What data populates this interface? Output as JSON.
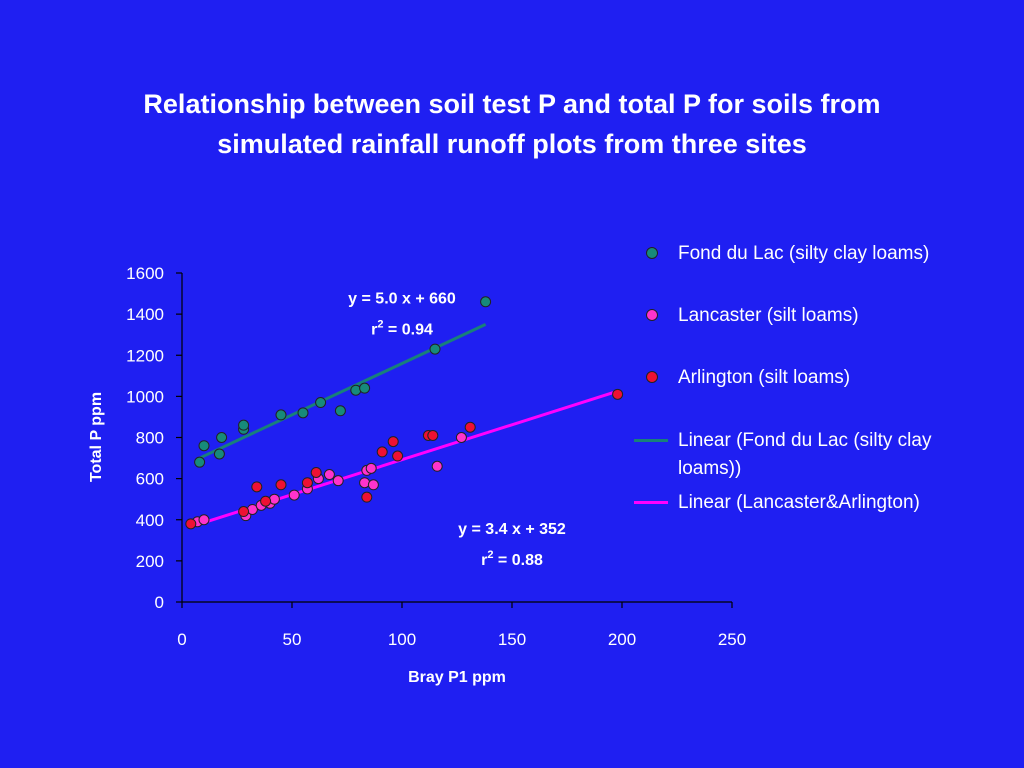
{
  "title_lines": [
    "Relationship between soil test P and total P for soils from",
    "simulated rainfall runoff plots from  three sites"
  ],
  "colors": {
    "background": "#1f1ff2",
    "fond_du_lac": "#178a7a",
    "lancaster": "#ff33cc",
    "arlington": "#ee1133",
    "fit_fond": "#18807a",
    "fit_lanc": "#ff00ff"
  },
  "legend": [
    {
      "label": "Fond du Lac (silty clay loams)",
      "marker": "dot",
      "color": "#178a7a"
    },
    {
      "label": "Lancaster (silt loams)",
      "marker": "dot",
      "color": "#ff33cc"
    },
    {
      "label": "Arlington (silt loams)",
      "marker": "dot",
      "color": "#ee1133"
    },
    {
      "label": "Linear (Fond du Lac (silty clay loams))",
      "marker": "line",
      "color": "#18807a"
    },
    {
      "label": "Linear (Lancaster&Arlington)",
      "marker": "line",
      "color": "#ff00ff"
    }
  ],
  "chart_data": {
    "type": "scatter",
    "title": "Relationship between soil test P and total P for soils from simulated rainfall runoff plots from  three sites",
    "xlabel": "Bray P1 ppm",
    "ylabel": "Total  P ppm",
    "xlim": [
      0,
      250
    ],
    "ylim": [
      0,
      1600
    ],
    "xticks": [
      0,
      50,
      100,
      150,
      200,
      250
    ],
    "yticks": [
      0,
      200,
      400,
      600,
      800,
      1000,
      1200,
      1400,
      1600
    ],
    "grid": false,
    "legend_position": "right",
    "series": [
      {
        "name": "Fond du Lac (silty clay loams)",
        "color": "#178a7a",
        "x": [
          8,
          10,
          17,
          18,
          28,
          28,
          45,
          55,
          63,
          72,
          79,
          83,
          115,
          138
        ],
        "y": [
          680,
          760,
          720,
          800,
          840,
          860,
          910,
          920,
          970,
          930,
          1030,
          1040,
          1230,
          1460
        ]
      },
      {
        "name": "Lancaster (silt loams)",
        "color": "#ff33cc",
        "x": [
          7,
          10,
          29,
          32,
          36,
          40,
          42,
          51,
          57,
          62,
          67,
          71,
          83,
          84,
          87,
          86,
          116,
          127
        ],
        "y": [
          390,
          400,
          420,
          450,
          470,
          480,
          500,
          520,
          550,
          600,
          620,
          590,
          580,
          640,
          570,
          650,
          660,
          800
        ]
      },
      {
        "name": "Arlington (silt loams)",
        "color": "#ee1133",
        "x": [
          4,
          28,
          34,
          38,
          45,
          57,
          61,
          84,
          91,
          96,
          98,
          112,
          114,
          131,
          198
        ],
        "y": [
          380,
          440,
          560,
          490,
          570,
          580,
          630,
          510,
          730,
          780,
          710,
          810,
          810,
          850,
          1010
        ]
      },
      {
        "name": "Linear (Fond du Lac (silty clay loams))",
        "type": "line",
        "color": "#18807a",
        "x": [
          8,
          138
        ],
        "y": [
          700,
          1350
        ]
      },
      {
        "name": "Linear (Lancaster&Arlington)",
        "type": "line",
        "color": "#ff00ff",
        "x": [
          4,
          198
        ],
        "y": [
          366,
          1025
        ]
      }
    ],
    "annotations": [
      {
        "text": "y = 5.0 x + 660",
        "r2_prefix": "r",
        "r2_sup": "2",
        "r2_text": " = 0.94",
        "x": 100,
        "y": 1500
      },
      {
        "text": "y = 3.4 x + 352",
        "r2_prefix": "r",
        "r2_sup": "2",
        "r2_text": " = 0.88",
        "x": 150,
        "y": 380
      }
    ]
  }
}
